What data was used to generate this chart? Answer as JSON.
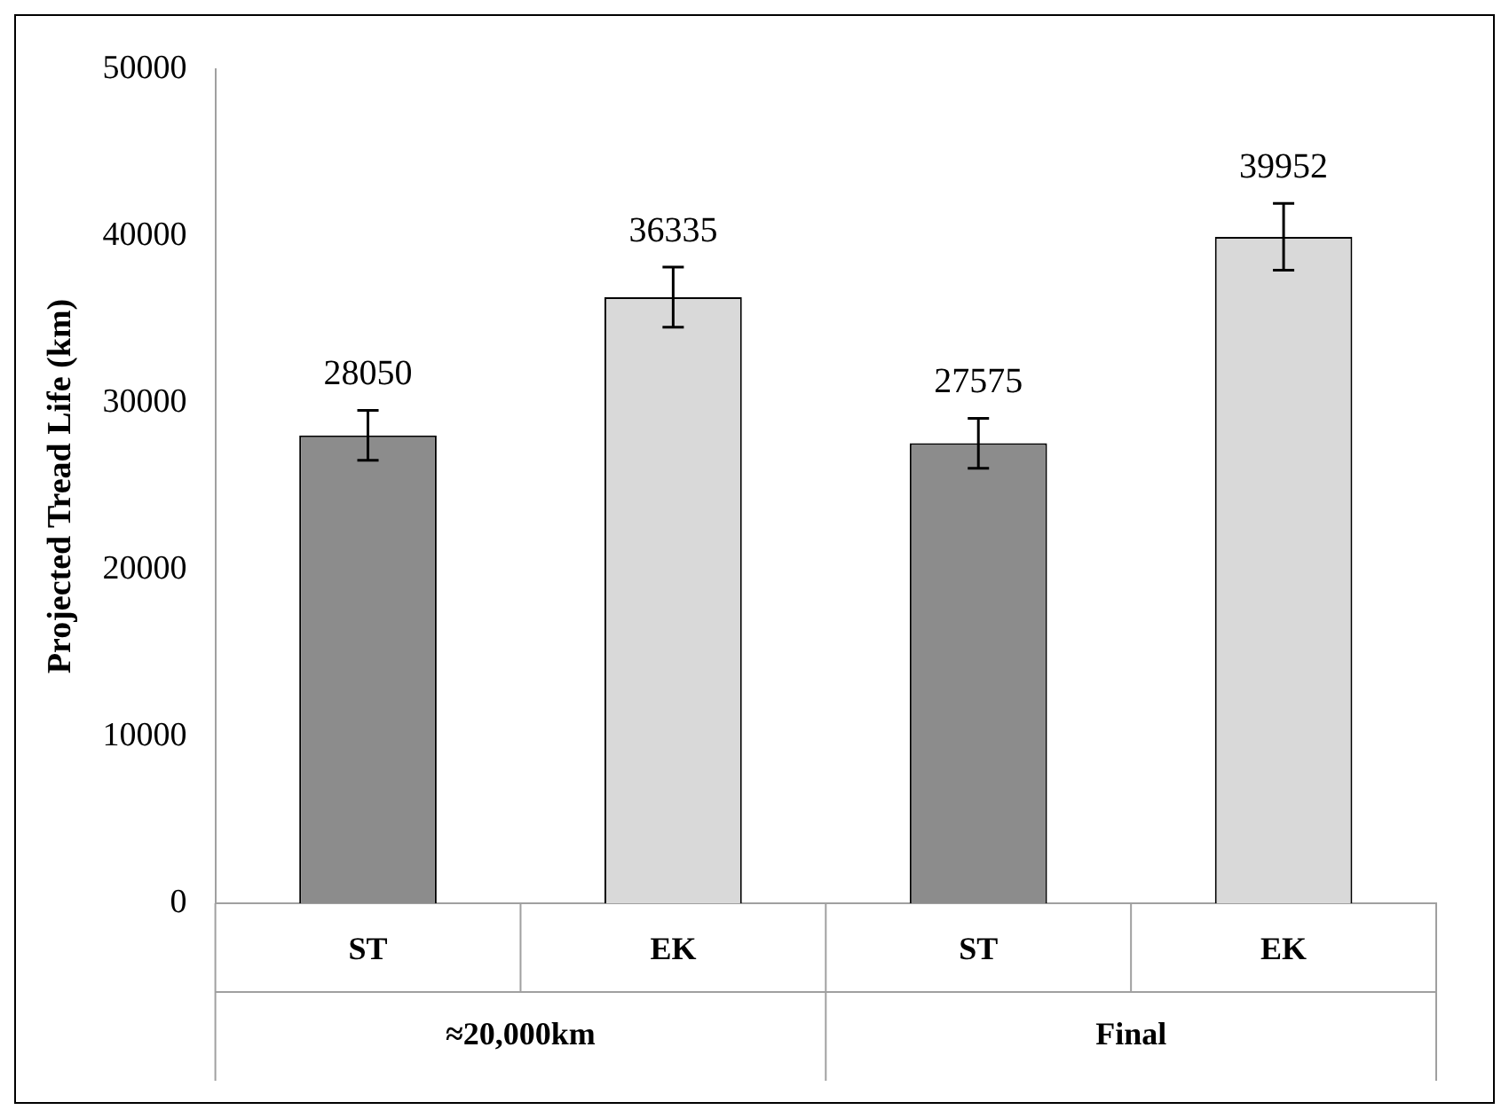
{
  "chart_data": {
    "type": "bar",
    "ylabel": "Projected Tread Life (km)",
    "categories": [
      "ST",
      "EK",
      "ST",
      "EK"
    ],
    "values": [
      28050,
      36335,
      27575,
      39952
    ],
    "colors": [
      "#8c8c8c",
      "#d9d9d9",
      "#8c8c8c",
      "#d9d9d9"
    ],
    "errors": [
      1500,
      1800,
      1500,
      2000
    ],
    "annotations": [
      "≈20,000km",
      "Final"
    ],
    "ylim": [
      0,
      50000
    ],
    "yticks": [
      0,
      10000,
      20000,
      30000,
      40000,
      50000
    ],
    "data_labels": true,
    "grid": false,
    "legend": false
  }
}
